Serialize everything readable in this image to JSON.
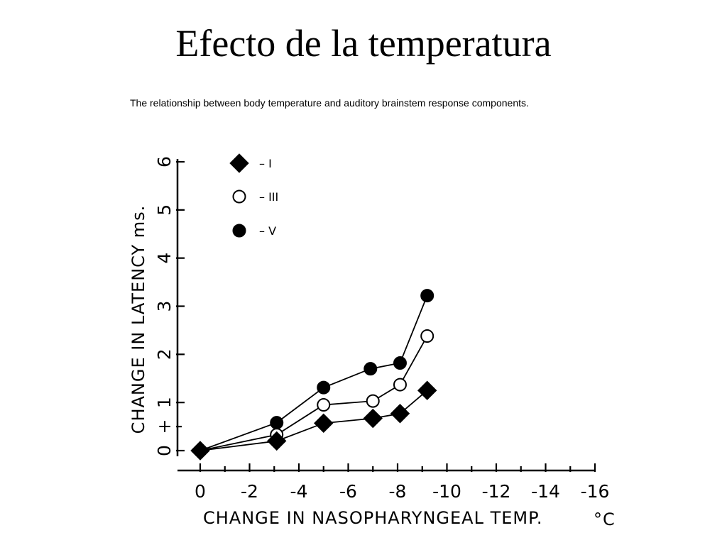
{
  "slide": {
    "title": "Efecto de la temperatura",
    "subtitle": "The relationship between body temperature and auditory brainstem response components."
  },
  "chart_data": {
    "type": "line",
    "xlabel": "CHANGE IN NASOPHARYNGEAL TEMP.",
    "xlabel_unit": "°C",
    "ylabel": "CHANGE IN LATENCY ms.",
    "xlim": [
      0,
      -16
    ],
    "ylim": [
      0,
      6
    ],
    "x_ticks": [
      "0",
      "-2",
      "-4",
      "-6",
      "-8",
      "-10",
      "-12",
      "-14",
      "-16"
    ],
    "y_ticks": [
      "0",
      "1",
      "2",
      "3",
      "4",
      "5",
      "6"
    ],
    "y_plus_label": "+",
    "legend_position": "top-left",
    "series": [
      {
        "name": "I",
        "legend_label": "– I",
        "marker": "filled-diamond",
        "points": [
          {
            "x": 0,
            "y": 0
          },
          {
            "x": -3.1,
            "y": 0.2
          },
          {
            "x": -5.0,
            "y": 0.57
          },
          {
            "x": -7.0,
            "y": 0.67
          },
          {
            "x": -8.1,
            "y": 0.77
          },
          {
            "x": -9.2,
            "y": 1.25
          }
        ]
      },
      {
        "name": "III",
        "legend_label": "– III",
        "marker": "open-circle",
        "points": [
          {
            "x": 0,
            "y": 0
          },
          {
            "x": -3.1,
            "y": 0.33
          },
          {
            "x": -5.0,
            "y": 0.95
          },
          {
            "x": -7.0,
            "y": 1.03
          },
          {
            "x": -8.1,
            "y": 1.37
          },
          {
            "x": -9.2,
            "y": 2.38
          }
        ]
      },
      {
        "name": "V",
        "legend_label": "– V",
        "marker": "filled-circle",
        "points": [
          {
            "x": 0,
            "y": 0
          },
          {
            "x": -3.1,
            "y": 0.58
          },
          {
            "x": -5.0,
            "y": 1.31
          },
          {
            "x": -6.9,
            "y": 1.7
          },
          {
            "x": -8.1,
            "y": 1.82
          },
          {
            "x": -9.2,
            "y": 3.22
          }
        ]
      }
    ]
  }
}
